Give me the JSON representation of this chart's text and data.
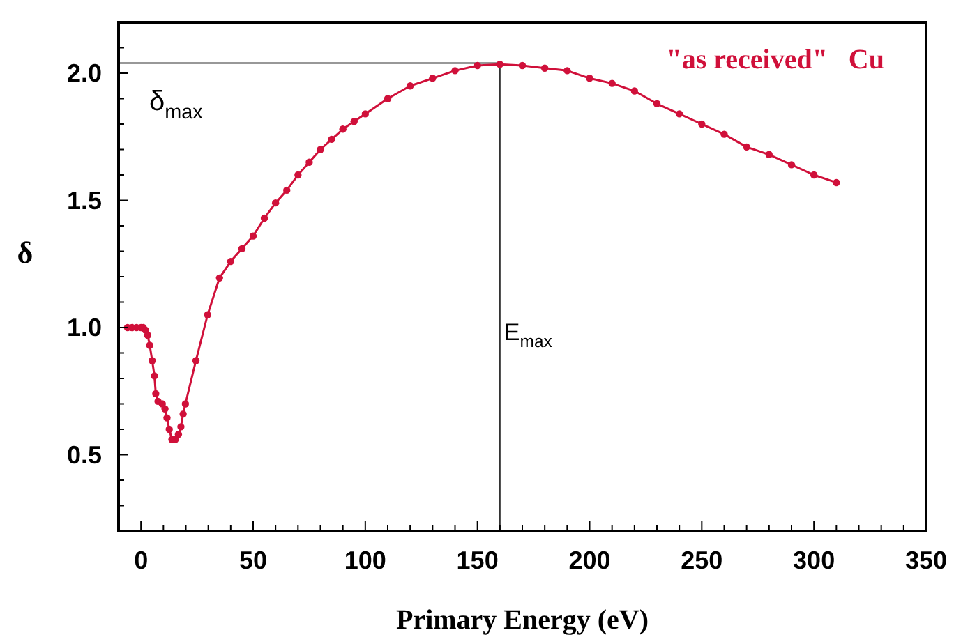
{
  "chart_data": {
    "type": "line",
    "xlabel": "Primary Energy (eV)",
    "ylabel": "δ",
    "xlim": [
      -10,
      350
    ],
    "ylim": [
      0.2,
      2.2
    ],
    "xticks": [
      0,
      {
        "value": 10,
        "label": null
      },
      {
        "value": 20,
        "label": null
      },
      {
        "value": 30,
        "label": null
      },
      {
        "value": 40,
        "label": null
      },
      50,
      {
        "value": 60,
        "label": null
      },
      {
        "value": 70,
        "label": null
      },
      {
        "value": 80,
        "label": null
      },
      {
        "value": 90,
        "label": null
      },
      100,
      {
        "value": 110,
        "label": null
      },
      {
        "value": 120,
        "label": null
      },
      {
        "value": 130,
        "label": null
      },
      {
        "value": 140,
        "label": null
      },
      150,
      {
        "value": 160,
        "label": null
      },
      {
        "value": 170,
        "label": null
      },
      {
        "value": 180,
        "label": null
      },
      {
        "value": 190,
        "label": null
      },
      200,
      {
        "value": 210,
        "label": null
      },
      {
        "value": 220,
        "label": null
      },
      {
        "value": 230,
        "label": null
      },
      {
        "value": 240,
        "label": null
      },
      250,
      {
        "value": 260,
        "label": null
      },
      {
        "value": 270,
        "label": null
      },
      {
        "value": 280,
        "label": null
      },
      {
        "value": 290,
        "label": null
      },
      300,
      {
        "value": 310,
        "label": null
      },
      {
        "value": 320,
        "label": null
      },
      {
        "value": 330,
        "label": null
      },
      {
        "value": 340,
        "label": null
      },
      350
    ],
    "yticks": [
      {
        "value": 0.3,
        "label": null
      },
      {
        "value": 0.4,
        "label": null
      },
      0.5,
      {
        "value": 0.6,
        "label": null
      },
      {
        "value": 0.7,
        "label": null
      },
      {
        "value": 0.8,
        "label": null
      },
      {
        "value": 0.9,
        "label": null
      },
      {
        "value": 1.0,
        "label": "1.0"
      },
      {
        "value": 1.1,
        "label": null
      },
      {
        "value": 1.2,
        "label": null
      },
      {
        "value": 1.3,
        "label": null
      },
      {
        "value": 1.4,
        "label": null
      },
      1.5,
      {
        "value": 1.6,
        "label": null
      },
      {
        "value": 1.7,
        "label": null
      },
      {
        "value": 1.8,
        "label": null
      },
      {
        "value": 1.9,
        "label": null
      },
      {
        "value": 2.0,
        "label": "2.0"
      },
      {
        "value": 2.1,
        "label": null
      }
    ],
    "grid": false,
    "marker": "circle",
    "line_style": "solid",
    "ref_lines": [
      {
        "axis": "y",
        "value": 2.04,
        "label": "δ$_{max}$",
        "color": "#333333"
      },
      {
        "axis": "x",
        "value": 160,
        "label": "E$_{max}$",
        "color": "#333333"
      }
    ],
    "series": [
      {
        "name": "\"as received\"   Cu",
        "color": "#d0103a",
        "x": [
          -6,
          -4,
          -2,
          0,
          1,
          2,
          3,
          3.9,
          5,
          6,
          6.6,
          7.6,
          9.5,
          10.7,
          11.6,
          12.6,
          13.8,
          15.3,
          16.7,
          17.8,
          18.8,
          19.8,
          24.5,
          29.7,
          35,
          40,
          45,
          50,
          55,
          60,
          65,
          70,
          75,
          80,
          85,
          90,
          95,
          100,
          110,
          120,
          130,
          140,
          150,
          160,
          170,
          180,
          190,
          200,
          210,
          220,
          230,
          240,
          250,
          260,
          270,
          280,
          290,
          300,
          310
        ],
        "values": [
          1.0,
          1.0,
          1.0,
          1.0,
          1.0,
          0.99,
          0.97,
          0.93,
          0.87,
          0.81,
          0.74,
          0.71,
          0.7,
          0.68,
          0.645,
          0.6,
          0.56,
          0.56,
          0.58,
          0.61,
          0.66,
          0.7,
          0.87,
          1.05,
          1.195,
          1.26,
          1.31,
          1.36,
          1.43,
          1.49,
          1.54,
          1.6,
          1.65,
          1.7,
          1.74,
          1.78,
          1.81,
          1.84,
          1.9,
          1.95,
          1.98,
          2.01,
          2.03,
          2.035,
          2.03,
          2.02,
          2.01,
          1.98,
          1.96,
          1.93,
          1.88,
          1.84,
          1.8,
          1.76,
          1.71,
          1.68,
          1.64,
          1.6,
          1.57
        ]
      }
    ]
  }
}
